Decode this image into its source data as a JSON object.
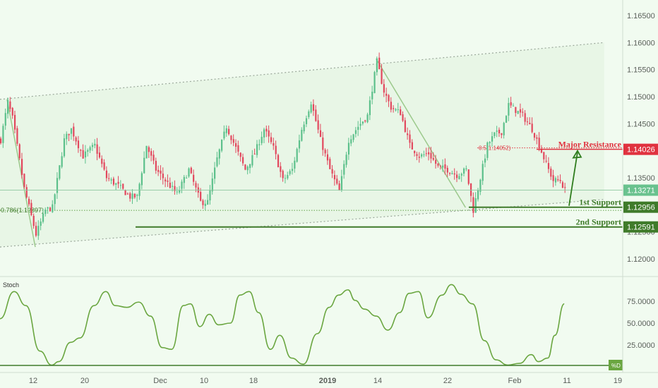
{
  "colors": {
    "background": "#f1fbf0",
    "up_candle": "#5cc08b",
    "down_candle": "#e2475d",
    "channel_line": "#9aa79a",
    "channel_fill": "#e3f3df",
    "fib_line": "#8fbf7e",
    "support_line": "#3f7b2a",
    "resistance_line": "#e0323f",
    "arrow": "#2f7d1e",
    "stoch_line": "#6aa640",
    "axis_text": "#5a5f5a",
    "grid_line": "#cfdccf"
  },
  "chart_data": {
    "type": "candlestick",
    "title": "",
    "ylabel": "",
    "ylim": [
      1.1165,
      1.16768
    ],
    "y_ticks": [
      "1.16500",
      "1.16000",
      "1.15500",
      "1.15000",
      "1.14500",
      "1.14000",
      "1.13500",
      "1.12500",
      "1.12000"
    ],
    "x_ticks": [
      "12",
      "20",
      "Dec",
      "10",
      "18",
      "2019",
      "14",
      "22",
      "Feb",
      "11",
      "19"
    ],
    "price_anchors": [
      {
        "i": 0,
        "v": 1.142
      },
      {
        "i": 3,
        "v": 1.149
      },
      {
        "i": 5,
        "v": 1.146
      },
      {
        "i": 10,
        "v": 1.133
      },
      {
        "i": 15,
        "v": 1.1245
      },
      {
        "i": 19,
        "v": 1.129
      },
      {
        "i": 22,
        "v": 1.1295
      },
      {
        "i": 27,
        "v": 1.142
      },
      {
        "i": 30,
        "v": 1.144
      },
      {
        "i": 35,
        "v": 1.139
      },
      {
        "i": 40,
        "v": 1.141
      },
      {
        "i": 45,
        "v": 1.135
      },
      {
        "i": 50,
        "v": 1.1335
      },
      {
        "i": 55,
        "v": 1.1315
      },
      {
        "i": 58,
        "v": 1.1315
      },
      {
        "i": 62,
        "v": 1.141
      },
      {
        "i": 66,
        "v": 1.1365
      },
      {
        "i": 70,
        "v": 1.1345
      },
      {
        "i": 75,
        "v": 1.132
      },
      {
        "i": 80,
        "v": 1.1365
      },
      {
        "i": 85,
        "v": 1.1305
      },
      {
        "i": 88,
        "v": 1.1305
      },
      {
        "i": 92,
        "v": 1.1385
      },
      {
        "i": 96,
        "v": 1.1445
      },
      {
        "i": 100,
        "v": 1.1405
      },
      {
        "i": 104,
        "v": 1.1365
      },
      {
        "i": 108,
        "v": 1.1395
      },
      {
        "i": 112,
        "v": 1.144
      },
      {
        "i": 116,
        "v": 1.1405
      },
      {
        "i": 120,
        "v": 1.1345
      },
      {
        "i": 124,
        "v": 1.1365
      },
      {
        "i": 128,
        "v": 1.144
      },
      {
        "i": 132,
        "v": 1.149
      },
      {
        "i": 136,
        "v": 1.142
      },
      {
        "i": 140,
        "v": 1.1365
      },
      {
        "i": 144,
        "v": 1.1325
      },
      {
        "i": 148,
        "v": 1.142
      },
      {
        "i": 152,
        "v": 1.1445
      },
      {
        "i": 156,
        "v": 1.1465
      },
      {
        "i": 160,
        "v": 1.1565
      },
      {
        "i": 163,
        "v": 1.151
      },
      {
        "i": 166,
        "v": 1.148
      },
      {
        "i": 170,
        "v": 1.147
      },
      {
        "i": 174,
        "v": 1.141
      },
      {
        "i": 178,
        "v": 1.139
      },
      {
        "i": 182,
        "v": 1.1395
      },
      {
        "i": 186,
        "v": 1.137
      },
      {
        "i": 190,
        "v": 1.1365
      },
      {
        "i": 194,
        "v": 1.1355
      },
      {
        "i": 198,
        "v": 1.1365
      },
      {
        "i": 201,
        "v": 1.129
      },
      {
        "i": 204,
        "v": 1.135
      },
      {
        "i": 207,
        "v": 1.141
      },
      {
        "i": 210,
        "v": 1.143
      },
      {
        "i": 213,
        "v": 1.1435
      },
      {
        "i": 216,
        "v": 1.1485
      },
      {
        "i": 219,
        "v": 1.1475
      },
      {
        "i": 222,
        "v": 1.1465
      },
      {
        "i": 226,
        "v": 1.144
      },
      {
        "i": 229,
        "v": 1.141
      },
      {
        "i": 232,
        "v": 1.1375
      },
      {
        "i": 235,
        "v": 1.1345
      },
      {
        "i": 238,
        "v": 1.1345
      },
      {
        "i": 240,
        "v": 1.1327
      }
    ],
    "candle_count": 241,
    "last_price": "1.13271",
    "channel": {
      "upper": [
        {
          "date_idx": 0,
          "v": 1.1495
        },
        {
          "date_idx": 257,
          "v": 1.16
        }
      ],
      "lower": [
        {
          "date_idx": 0,
          "v": 1.1222
        },
        {
          "date_idx": 257,
          "v": 1.131
        }
      ]
    },
    "fib": {
      "label_1": "0.786(1.12897)",
      "level_1": 1.12897,
      "label_2": "0.5(1.14052)",
      "level_2": 1.14052
    },
    "levels": [
      {
        "name": "Major Resistance",
        "value": 1.14026,
        "label": "1.14026",
        "kind": "resistance"
      },
      {
        "name": "1st Support",
        "value": 1.12956,
        "label": "1.12956",
        "kind": "support"
      },
      {
        "name": "2nd Support",
        "value": 1.12591,
        "label": "1.12591",
        "kind": "support"
      }
    ],
    "stoch": {
      "label": "Stoch",
      "ylim": [
        0,
        100
      ],
      "y_ticks": [
        "75.0000",
        "50.0000",
        "25.0000"
      ],
      "d_label": "%D",
      "anchors": [
        {
          "i": 0,
          "v": 55
        },
        {
          "i": 6,
          "v": 86
        },
        {
          "i": 11,
          "v": 70
        },
        {
          "i": 17,
          "v": 18
        },
        {
          "i": 22,
          "v": 2
        },
        {
          "i": 25,
          "v": 6
        },
        {
          "i": 30,
          "v": 28
        },
        {
          "i": 34,
          "v": 33
        },
        {
          "i": 40,
          "v": 70
        },
        {
          "i": 45,
          "v": 86
        },
        {
          "i": 49,
          "v": 70
        },
        {
          "i": 54,
          "v": 68
        },
        {
          "i": 59,
          "v": 74
        },
        {
          "i": 64,
          "v": 58
        },
        {
          "i": 69,
          "v": 22
        },
        {
          "i": 73,
          "v": 20
        },
        {
          "i": 78,
          "v": 70
        },
        {
          "i": 81,
          "v": 72
        },
        {
          "i": 85,
          "v": 46
        },
        {
          "i": 89,
          "v": 60
        },
        {
          "i": 93,
          "v": 48
        },
        {
          "i": 98,
          "v": 50
        },
        {
          "i": 102,
          "v": 82
        },
        {
          "i": 106,
          "v": 86
        },
        {
          "i": 110,
          "v": 62
        },
        {
          "i": 115,
          "v": 20
        },
        {
          "i": 119,
          "v": 36
        },
        {
          "i": 124,
          "v": 10
        },
        {
          "i": 129,
          "v": 3
        },
        {
          "i": 135,
          "v": 38
        },
        {
          "i": 140,
          "v": 68
        },
        {
          "i": 144,
          "v": 82
        },
        {
          "i": 148,
          "v": 88
        },
        {
          "i": 151,
          "v": 76
        },
        {
          "i": 155,
          "v": 66
        },
        {
          "i": 160,
          "v": 58
        },
        {
          "i": 165,
          "v": 42
        },
        {
          "i": 170,
          "v": 62
        },
        {
          "i": 174,
          "v": 84
        },
        {
          "i": 178,
          "v": 86
        },
        {
          "i": 182,
          "v": 56
        },
        {
          "i": 188,
          "v": 82
        },
        {
          "i": 192,
          "v": 94
        },
        {
          "i": 196,
          "v": 83
        },
        {
          "i": 201,
          "v": 72
        },
        {
          "i": 206,
          "v": 30
        },
        {
          "i": 211,
          "v": 8
        },
        {
          "i": 216,
          "v": 2
        },
        {
          "i": 221,
          "v": 4
        },
        {
          "i": 226,
          "v": 14
        },
        {
          "i": 229,
          "v": 6
        },
        {
          "i": 233,
          "v": 10
        },
        {
          "i": 236,
          "v": 36
        },
        {
          "i": 240,
          "v": 72
        }
      ]
    }
  }
}
